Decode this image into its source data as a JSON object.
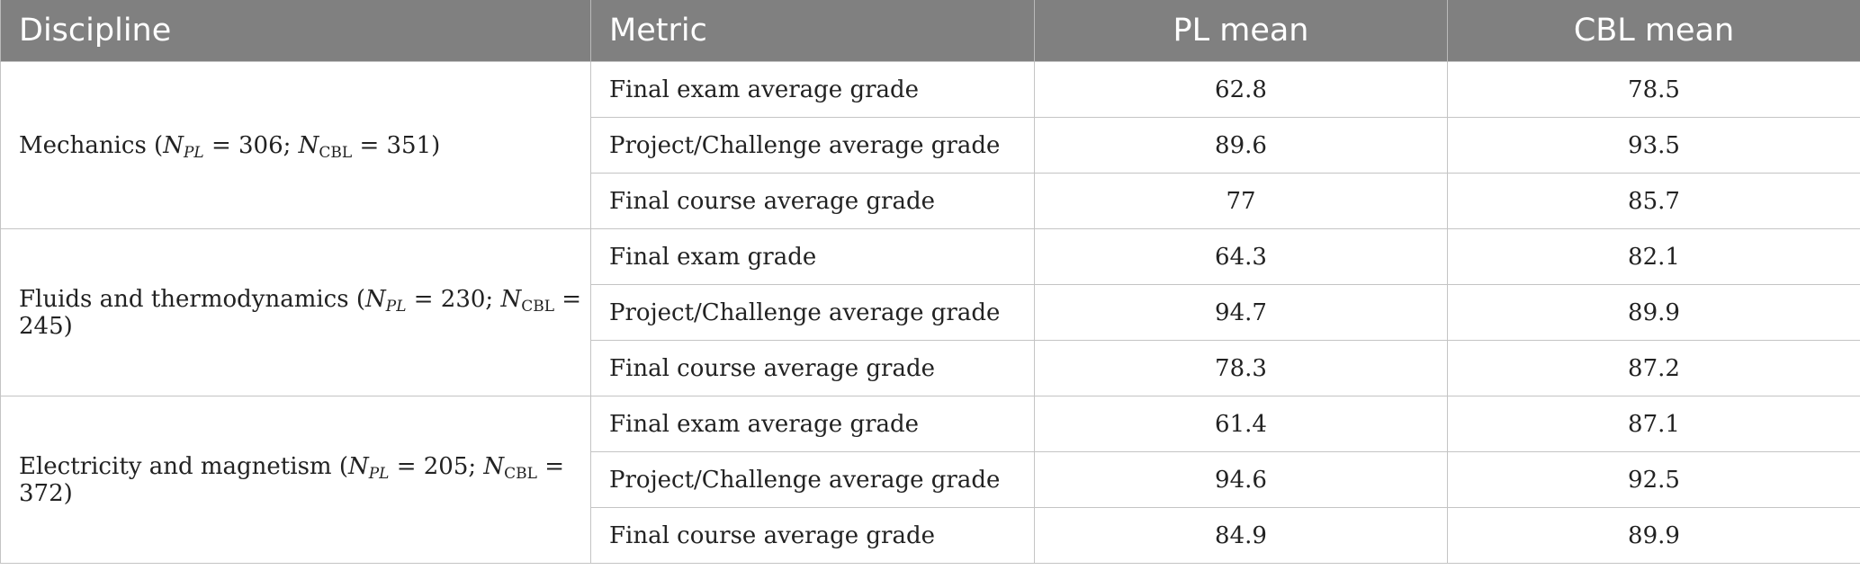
{
  "headers": {
    "discipline": "Discipline",
    "metric": "Metric",
    "pl_mean": "PL mean",
    "cbl_mean": "CBL mean"
  },
  "groups": [
    {
      "discipline": {
        "name": "Mechanics (",
        "n_symbol_1": "N",
        "sub_1": "PL",
        "eq_1": " = 306; ",
        "n_symbol_2": "N",
        "sub_2": "CBL",
        "eq_2": " = 351)"
      },
      "rows": [
        {
          "metric": "Final exam average grade",
          "pl": "62.8",
          "cbl": "78.5"
        },
        {
          "metric": "Project/Challenge average grade",
          "pl": "89.6",
          "cbl": "93.5"
        },
        {
          "metric": "Final course average grade",
          "pl": "77",
          "cbl": "85.7"
        }
      ]
    },
    {
      "discipline": {
        "name": "Fluids and thermodynamics (",
        "n_symbol_1": "N",
        "sub_1": "PL",
        "eq_1": " = 230; ",
        "n_symbol_2": "N",
        "sub_2": "CBL",
        "eq_2": " = 245)"
      },
      "rows": [
        {
          "metric": "Final exam grade",
          "pl": "64.3",
          "cbl": "82.1"
        },
        {
          "metric": "Project/Challenge average grade",
          "pl": "94.7",
          "cbl": "89.9"
        },
        {
          "metric": "Final course average grade",
          "pl": "78.3",
          "cbl": "87.2"
        }
      ]
    },
    {
      "discipline": {
        "name": "Electricity and magnetism (",
        "n_symbol_1": "N",
        "sub_1": "PL",
        "eq_1": " = 205; ",
        "n_symbol_2": "N",
        "sub_2": "CBL",
        "eq_2": " = 372)"
      },
      "rows": [
        {
          "metric": "Final exam average grade",
          "pl": "61.4",
          "cbl": "87.1"
        },
        {
          "metric": "Project/Challenge average grade",
          "pl": "94.6",
          "cbl": "92.5"
        },
        {
          "metric": "Final course average grade",
          "pl": "84.9",
          "cbl": "89.9"
        }
      ]
    }
  ]
}
